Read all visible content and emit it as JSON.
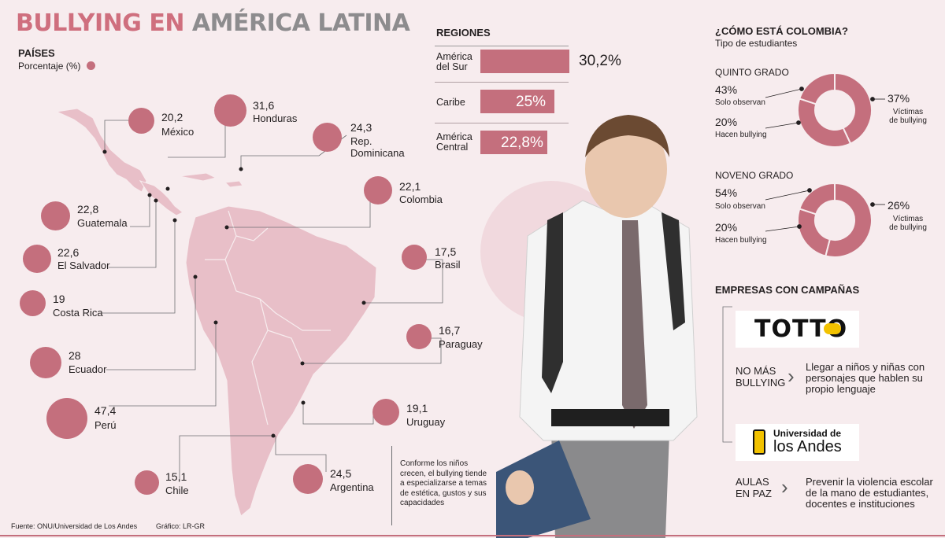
{
  "title": {
    "part1": "BULLYING EN",
    "part2": "AMÉRICA LATINA"
  },
  "paises": {
    "header": "PAÍSES",
    "subtitle": "Porcentaje (%)"
  },
  "regiones": {
    "header": "REGIONES"
  },
  "colombia": {
    "header": "¿CÓMO ESTÁ COLOMBIA?",
    "subtitle": "Tipo de estudiantes"
  },
  "empresas": {
    "header": "EMPRESAS CON CAMPAÑAS"
  },
  "chart_data": [
    {
      "type": "scatter",
      "title": "PAÍSES",
      "subtitle": "Porcentaje (%)",
      "points": [
        {
          "name": "México",
          "value": "20,2"
        },
        {
          "name": "Honduras",
          "value": "31,6"
        },
        {
          "name": "Rep. Dominicana",
          "value": "24,3"
        },
        {
          "name": "Colombia",
          "value": "22,1"
        },
        {
          "name": "Guatemala",
          "value": "22,8"
        },
        {
          "name": "El Salvador",
          "value": "22,6"
        },
        {
          "name": "Brasil",
          "value": "17,5"
        },
        {
          "name": "Costa Rica",
          "value": "19"
        },
        {
          "name": "Paraguay",
          "value": "16,7"
        },
        {
          "name": "Ecuador",
          "value": "28"
        },
        {
          "name": "Perú",
          "value": "47,4"
        },
        {
          "name": "Uruguay",
          "value": "19,1"
        },
        {
          "name": "Chile",
          "value": "15,1"
        },
        {
          "name": "Argentina",
          "value": "24,5"
        }
      ]
    },
    {
      "type": "bar",
      "title": "REGIONES",
      "categories": [
        "América del Sur",
        "Caribe",
        "América Central"
      ],
      "values": [
        30.2,
        25,
        22.8
      ],
      "labels": [
        "30,2%",
        "25%",
        "22,8%"
      ]
    },
    {
      "type": "pie",
      "title": "QUINTO GRADO",
      "slices": [
        {
          "label": "Solo observan",
          "value": 43,
          "text": "43%"
        },
        {
          "label": "Víctimas de bullying",
          "value": 37,
          "text": "37%"
        },
        {
          "label": "Hacen bullying",
          "value": 20,
          "text": "20%"
        }
      ]
    },
    {
      "type": "pie",
      "title": "NOVENO GRADO",
      "slices": [
        {
          "label": "Solo observan",
          "value": 54,
          "text": "54%"
        },
        {
          "label": "Víctimas de bullying",
          "value": 26,
          "text": "26%"
        },
        {
          "label": "Hacen bullying",
          "value": 20,
          "text": "20%"
        }
      ]
    }
  ],
  "campaigns": [
    {
      "logo": "TOTTO",
      "name_line1": "NO MÁS",
      "name_line2": "BULLYING",
      "desc_lines": [
        "Llegar a niños y niñas con",
        "personajes que hablen su",
        "propio lenguaje"
      ]
    },
    {
      "logo_line1": "Universidad de",
      "logo_line2": "los Andes",
      "name_line1": "AULAS",
      "name_line2": "EN PAZ",
      "desc_lines": [
        "Prevenir la violencia escolar",
        "de la mano de estudiantes,",
        "docentes e instituciones"
      ]
    }
  ],
  "note": "Conforme los niños crecen, el bullying tiende a especializarse a temas de estética, gustos y sus capacidades",
  "footer": {
    "source": "Fuente: ONU/Universidad de Los Andes",
    "credit": "Gráfico: LR-GR"
  },
  "colors": {
    "accent": "#c46f7d",
    "title_pink": "#cf6f7e",
    "title_gray": "#8d8c8e",
    "map": "#e8bfc8",
    "background": "#f7ecee"
  },
  "icons": [
    "student-photo",
    "chevron-right-icon"
  ]
}
